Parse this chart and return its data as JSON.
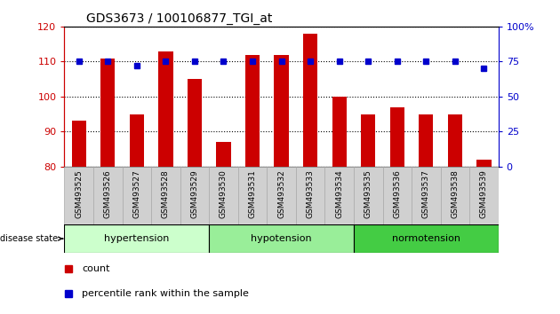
{
  "title": "GDS3673 / 100106877_TGI_at",
  "samples": [
    "GSM493525",
    "GSM493526",
    "GSM493527",
    "GSM493528",
    "GSM493529",
    "GSM493530",
    "GSM493531",
    "GSM493532",
    "GSM493533",
    "GSM493534",
    "GSM493535",
    "GSM493536",
    "GSM493537",
    "GSM493538",
    "GSM493539"
  ],
  "count_values": [
    93,
    111,
    95,
    113,
    105,
    87,
    112,
    112,
    118,
    100,
    95,
    97,
    95,
    95,
    82
  ],
  "percentile_values": [
    75,
    75,
    72,
    75,
    75,
    75,
    75,
    75,
    75,
    75,
    75,
    75,
    75,
    75,
    70
  ],
  "ylim_left": [
    80,
    120
  ],
  "ylim_right": [
    0,
    100
  ],
  "yticks_left": [
    80,
    90,
    100,
    110,
    120
  ],
  "yticks_right": [
    0,
    25,
    50,
    75,
    100
  ],
  "groups": [
    {
      "label": "hypertension",
      "start": 0,
      "end": 4,
      "color": "#ccffcc"
    },
    {
      "label": "hypotension",
      "start": 5,
      "end": 9,
      "color": "#99ee99"
    },
    {
      "label": "normotension",
      "start": 10,
      "end": 14,
      "color": "#44cc44"
    }
  ],
  "bar_color": "#cc0000",
  "dot_color": "#0000cc",
  "tick_label_bg": "#d0d0d0",
  "disease_state_label": "disease state",
  "legend_count_label": "count",
  "legend_pct_label": "percentile rank within the sample"
}
